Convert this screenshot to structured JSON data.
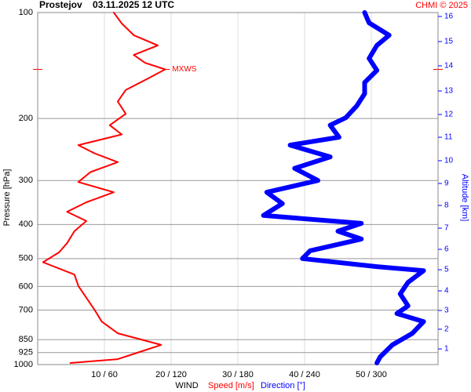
{
  "chart_data": {
    "type": "profile",
    "title": "Prostejov    03.11.2025 12 UTC",
    "credit": "CHMI © 2025",
    "ylabel": "Pressure [hPa]",
    "y2label": "Altitude [km]",
    "xlabel": "WIND",
    "log_y": true,
    "grid": true,
    "ylim": [
      100,
      1000
    ],
    "yticks": [
      100,
      200,
      300,
      400,
      500,
      600,
      700,
      850,
      925,
      1000
    ],
    "xlim": [
      0,
      60
    ],
    "xticks": [
      {
        "value": 10,
        "label": "10 / 60"
      },
      {
        "value": 20,
        "label": "20 / 120"
      },
      {
        "value": 30,
        "label": "30 / 180"
      },
      {
        "value": 40,
        "label": "40 / 240"
      },
      {
        "value": 50,
        "label": "50 / 300"
      }
    ],
    "dirlim": [
      0,
      360
    ],
    "y2ticks": [
      1,
      2,
      3,
      4,
      5,
      6,
      7,
      8,
      9,
      10,
      11,
      12,
      13,
      14,
      15,
      16
    ],
    "y2tick_pressures": [
      902.8,
      793.6,
      702,
      617.5,
      537.8,
      470.6,
      409.8,
      353.1,
      305.9,
      263.6,
      226.1,
      194.8,
      167,
      141.7,
      120.9,
      102.6
    ],
    "annotation": {
      "label": "MXWS",
      "pressure": 145,
      "speed": 19.1
    },
    "series": [
      {
        "name": "Speed [m/s]",
        "color": "#ff0000",
        "axis": "speed",
        "pressure": [
          100,
          107.4,
          116,
          124,
          132,
          139,
          145,
          154,
          166,
          179,
          194,
          209,
          222,
          238,
          251,
          266,
          284,
          303,
          324,
          346,
          368,
          391,
          418,
          452,
          480,
          512,
          555,
          598,
          646,
          698,
          755,
          815,
          879,
          926,
          965,
          990
        ],
        "values": [
          11.4,
          12.6,
          14.4,
          18.0,
          14.4,
          16.1,
          19.1,
          16.5,
          13.2,
          12.0,
          13.2,
          10.8,
          12.6,
          6.1,
          8.5,
          12.0,
          7.9,
          6.1,
          11.4,
          7.3,
          4.4,
          7.3,
          5.5,
          4.4,
          3.2,
          0.8,
          5.5,
          6.1,
          7.3,
          8.5,
          9.6,
          12.0,
          18.5,
          14.9,
          12.0,
          4.9
        ]
      },
      {
        "name": "Direction [°]",
        "color": "#0000ff",
        "axis": "direction",
        "pressure": [
          100,
          107,
          116,
          124,
          135,
          146,
          158,
          170,
          184,
          199,
          209,
          226,
          238,
          257,
          277,
          300,
          324,
          349,
          377,
          397,
          418,
          440,
          475,
          500,
          527,
          541,
          584,
          630,
          681,
          716,
          755,
          815,
          879,
          951,
          990
        ],
        "values": [
          294,
          298,
          316,
          305,
          298,
          305,
          294,
          294,
          287,
          277,
          263,
          271,
          227,
          263,
          231,
          252,
          206,
          220,
          203,
          291,
          270,
          291,
          245,
          238,
          305,
          347,
          333,
          326,
          333,
          323,
          347,
          337,
          319,
          308,
          305
        ]
      }
    ]
  }
}
